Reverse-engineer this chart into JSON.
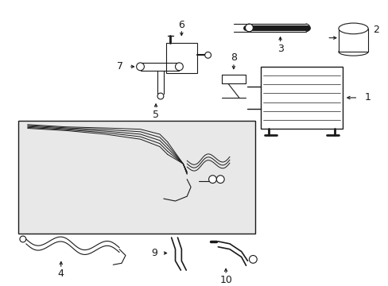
{
  "background_color": "#ffffff",
  "box_background": "#e8e8e8",
  "line_color": "#1a1a1a",
  "fig_width": 4.89,
  "fig_height": 3.6,
  "dpi": 100
}
